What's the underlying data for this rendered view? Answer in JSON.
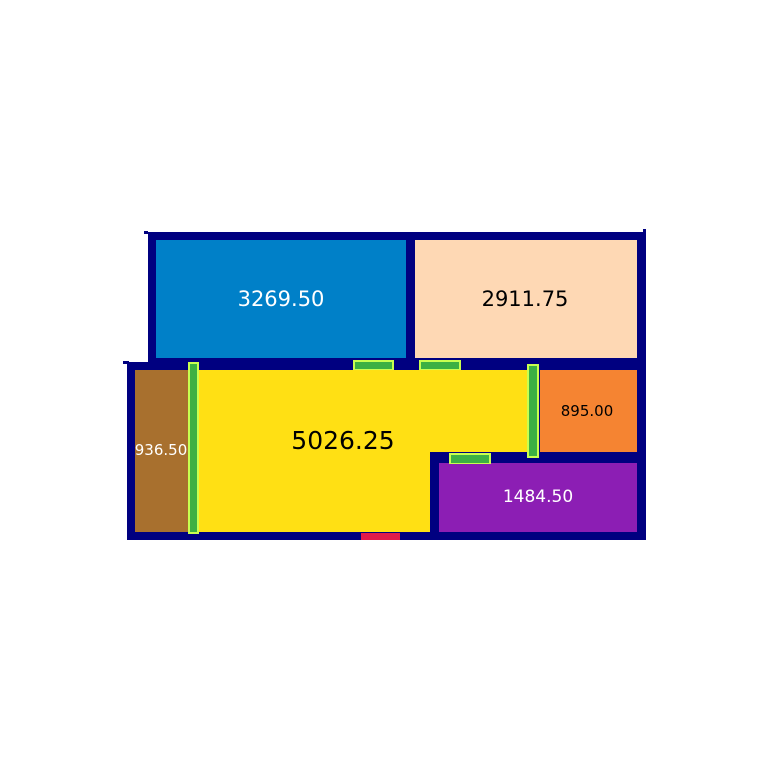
{
  "colors": {
    "background": "#ffffff",
    "wall": "#000080",
    "door": "#3cb043",
    "door_edge": "#c8ff50",
    "entrance": "#e0194a"
  },
  "rooms": [
    {
      "id": "room-blue",
      "label": "3269.50",
      "fill": "#0080c8",
      "text_color": "#ffffff"
    },
    {
      "id": "room-peach",
      "label": "2911.75",
      "fill": "#fed8b4",
      "text_color": "#000000"
    },
    {
      "id": "room-brown",
      "label": "936.50",
      "fill": "#a8702e",
      "text_color": "#ffffff"
    },
    {
      "id": "room-yellow",
      "label": "5026.25",
      "fill": "#ffe014",
      "text_color": "#000000"
    },
    {
      "id": "room-orange",
      "label": "895.00",
      "fill": "#f58432",
      "text_color": "#000000"
    },
    {
      "id": "room-purple",
      "label": "1484.50",
      "fill": "#8c1eb4",
      "text_color": "#ffffff"
    }
  ]
}
